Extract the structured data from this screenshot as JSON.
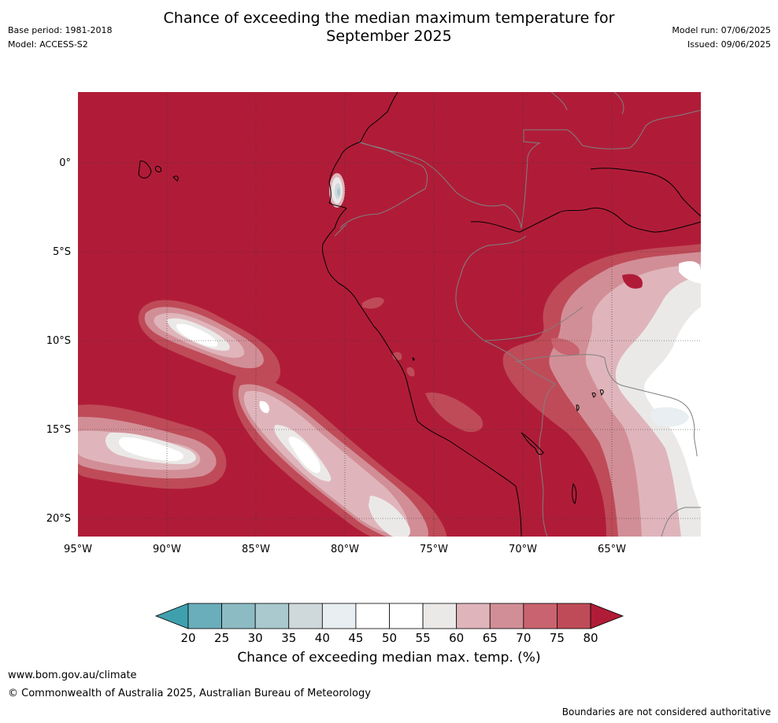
{
  "header": {
    "title_line1": "Chance of exceeding the median maximum temperature for",
    "title_line2": "September 2025",
    "base_period": "Base period: 1981-2018",
    "model": "Model: ACCESS-S2",
    "model_run": "Model run: 07/06/2025",
    "issued": "Issued: 09/06/2025"
  },
  "map": {
    "lat_labels": [
      "0°",
      "5°S",
      "10°S",
      "15°S",
      "20°S"
    ],
    "lon_labels": [
      "95°W",
      "90°W",
      "85°W",
      "80°W",
      "75°W",
      "70°W",
      "65°W"
    ],
    "background_color": "#b01c38",
    "coastline_color": "#000000",
    "border_color": "#808080"
  },
  "colorbar": {
    "ticks": [
      "20",
      "25",
      "30",
      "35",
      "40",
      "45",
      "50",
      "55",
      "60",
      "65",
      "70",
      "75",
      "80"
    ],
    "colors": [
      "#3fa0ad",
      "#6aaebb",
      "#8dbbc4",
      "#a9c9ce",
      "#cfd8da",
      "#e8eef1",
      "#ffffff",
      "#ffffff",
      "#ebe9e8",
      "#dfb5bb",
      "#d28e96",
      "#c8636f",
      "#bf4b58",
      "#b01c38"
    ],
    "label": "Chance of exceeding median max. temp. (%)"
  },
  "footer": {
    "url": "www.bom.gov.au/climate",
    "copyright": "© Commonwealth of Australia 2025, Australian Bureau of Meteorology",
    "note": "Boundaries are not considered authoritative"
  }
}
